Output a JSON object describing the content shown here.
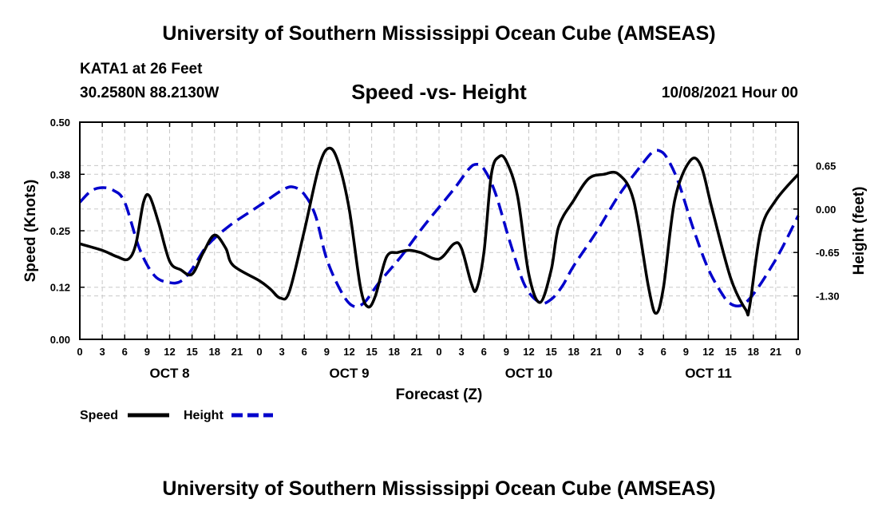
{
  "header": {
    "title": "University of Southern Mississippi Ocean Cube (AMSEAS)",
    "station": "KATA1 at 26 Feet",
    "coords": "30.2580N  88.2130W",
    "subtitle": "Speed -vs- Height",
    "datetime": "10/08/2021 Hour 00"
  },
  "footer": {
    "title": "University of Southern Mississippi Ocean Cube (AMSEAS)"
  },
  "chart_data": {
    "type": "line",
    "title": "Speed -vs- Height",
    "xlabel": "Forecast (Z)",
    "ylabel_left": "Speed (Knots)",
    "ylabel_right": "Height (feet)",
    "x_range_hours": [
      0,
      96
    ],
    "x_tick_labels": [
      "0",
      "3",
      "6",
      "9",
      "12",
      "15",
      "18",
      "21",
      "0",
      "3",
      "6",
      "9",
      "12",
      "15",
      "18",
      "21",
      "0",
      "3",
      "6",
      "9",
      "12",
      "15",
      "18",
      "21",
      "0",
      "3",
      "6",
      "9",
      "12",
      "15",
      "18",
      "21",
      "0"
    ],
    "date_labels": [
      {
        "hour": 12,
        "label": "OCT 8"
      },
      {
        "hour": 36,
        "label": "OCT 9"
      },
      {
        "hour": 60,
        "label": "OCT 10"
      },
      {
        "hour": 84,
        "label": "OCT 11"
      }
    ],
    "left_axis": {
      "min": 0.0,
      "max": 0.5,
      "ticks": [
        0.0,
        0.12,
        0.25,
        0.38,
        0.5
      ],
      "tick_labels": [
        "0.00",
        "0.12",
        "0.25",
        "0.38",
        "0.50"
      ]
    },
    "right_axis": {
      "min": -1.95,
      "max": 1.3,
      "ticks": [
        0.65,
        0.0,
        -0.65,
        -1.3
      ],
      "tick_labels": [
        "0.65",
        "0.00",
        "-0.65",
        "-1.30"
      ]
    },
    "grid": true,
    "series": [
      {
        "name": "Speed",
        "axis": "left",
        "color": "#000000",
        "style": "solid",
        "points": [
          [
            0,
            0.22
          ],
          [
            3,
            0.205
          ],
          [
            5,
            0.19
          ],
          [
            6.5,
            0.185
          ],
          [
            7.5,
            0.22
          ],
          [
            8.5,
            0.315
          ],
          [
            9.3,
            0.33
          ],
          [
            10.5,
            0.27
          ],
          [
            12,
            0.18
          ],
          [
            13.5,
            0.16
          ],
          [
            15,
            0.15
          ],
          [
            16.5,
            0.2
          ],
          [
            18,
            0.24
          ],
          [
            19.5,
            0.21
          ],
          [
            20.5,
            0.17
          ],
          [
            24,
            0.135
          ],
          [
            25.5,
            0.115
          ],
          [
            26.8,
            0.095
          ],
          [
            28,
            0.11
          ],
          [
            30,
            0.25
          ],
          [
            32,
            0.4
          ],
          [
            33.3,
            0.44
          ],
          [
            34.5,
            0.41
          ],
          [
            36,
            0.3
          ],
          [
            37.5,
            0.12
          ],
          [
            38.5,
            0.075
          ],
          [
            39.5,
            0.1
          ],
          [
            41,
            0.19
          ],
          [
            42.5,
            0.2
          ],
          [
            44,
            0.205
          ],
          [
            45.5,
            0.2
          ],
          [
            48,
            0.185
          ],
          [
            50,
            0.22
          ],
          [
            51,
            0.21
          ],
          [
            52.3,
            0.13
          ],
          [
            53,
            0.115
          ],
          [
            54,
            0.2
          ],
          [
            55,
            0.38
          ],
          [
            56,
            0.42
          ],
          [
            57,
            0.41
          ],
          [
            58.5,
            0.33
          ],
          [
            60,
            0.15
          ],
          [
            61.5,
            0.085
          ],
          [
            63,
            0.16
          ],
          [
            64,
            0.26
          ],
          [
            66,
            0.32
          ],
          [
            68,
            0.37
          ],
          [
            70,
            0.38
          ],
          [
            72,
            0.38
          ],
          [
            74,
            0.32
          ],
          [
            76,
            0.12
          ],
          [
            77,
            0.06
          ],
          [
            78,
            0.12
          ],
          [
            79.5,
            0.32
          ],
          [
            81.5,
            0.41
          ],
          [
            83,
            0.4
          ],
          [
            84.5,
            0.3
          ],
          [
            87,
            0.14
          ],
          [
            89,
            0.068
          ],
          [
            89.5,
            0.075
          ],
          [
            91,
            0.25
          ],
          [
            93,
            0.32
          ],
          [
            96,
            0.38
          ]
        ]
      },
      {
        "name": "Height",
        "axis": "right",
        "color": "#0000cc",
        "style": "dashed",
        "points": [
          [
            0,
            0.1
          ],
          [
            1.5,
            0.27
          ],
          [
            3,
            0.32
          ],
          [
            4.5,
            0.28
          ],
          [
            6,
            0.1
          ],
          [
            8,
            -0.6
          ],
          [
            10,
            -1.0
          ],
          [
            12,
            -1.1
          ],
          [
            13.5,
            -1.08
          ],
          [
            15,
            -0.9
          ],
          [
            17,
            -0.55
          ],
          [
            20,
            -0.25
          ],
          [
            24,
            0.05
          ],
          [
            27,
            0.28
          ],
          [
            28.5,
            0.33
          ],
          [
            30,
            0.22
          ],
          [
            31.5,
            -0.1
          ],
          [
            33,
            -0.75
          ],
          [
            35,
            -1.25
          ],
          [
            36.5,
            -1.45
          ],
          [
            38,
            -1.4
          ],
          [
            40,
            -1.1
          ],
          [
            43,
            -0.7
          ],
          [
            46,
            -0.25
          ],
          [
            50,
            0.3
          ],
          [
            52,
            0.6
          ],
          [
            53,
            0.67
          ],
          [
            54,
            0.6
          ],
          [
            55.5,
            0.25
          ],
          [
            57.5,
            -0.5
          ],
          [
            59.5,
            -1.15
          ],
          [
            61.5,
            -1.4
          ],
          [
            63,
            -1.35
          ],
          [
            64.5,
            -1.15
          ],
          [
            66,
            -0.85
          ],
          [
            69,
            -0.35
          ],
          [
            72,
            0.2
          ],
          [
            75,
            0.65
          ],
          [
            76.5,
            0.85
          ],
          [
            77.5,
            0.87
          ],
          [
            78.5,
            0.76
          ],
          [
            80,
            0.4
          ],
          [
            82,
            -0.3
          ],
          [
            84,
            -0.9
          ],
          [
            86,
            -1.3
          ],
          [
            87,
            -1.42
          ],
          [
            88,
            -1.45
          ],
          [
            89,
            -1.4
          ],
          [
            90.5,
            -1.2
          ],
          [
            92.5,
            -0.85
          ],
          [
            94,
            -0.55
          ],
          [
            96,
            -0.1
          ]
        ]
      }
    ],
    "legend": [
      {
        "label": "Speed",
        "color": "#000000",
        "style": "solid"
      },
      {
        "label": "Height",
        "color": "#0000cc",
        "style": "dashed"
      }
    ]
  }
}
